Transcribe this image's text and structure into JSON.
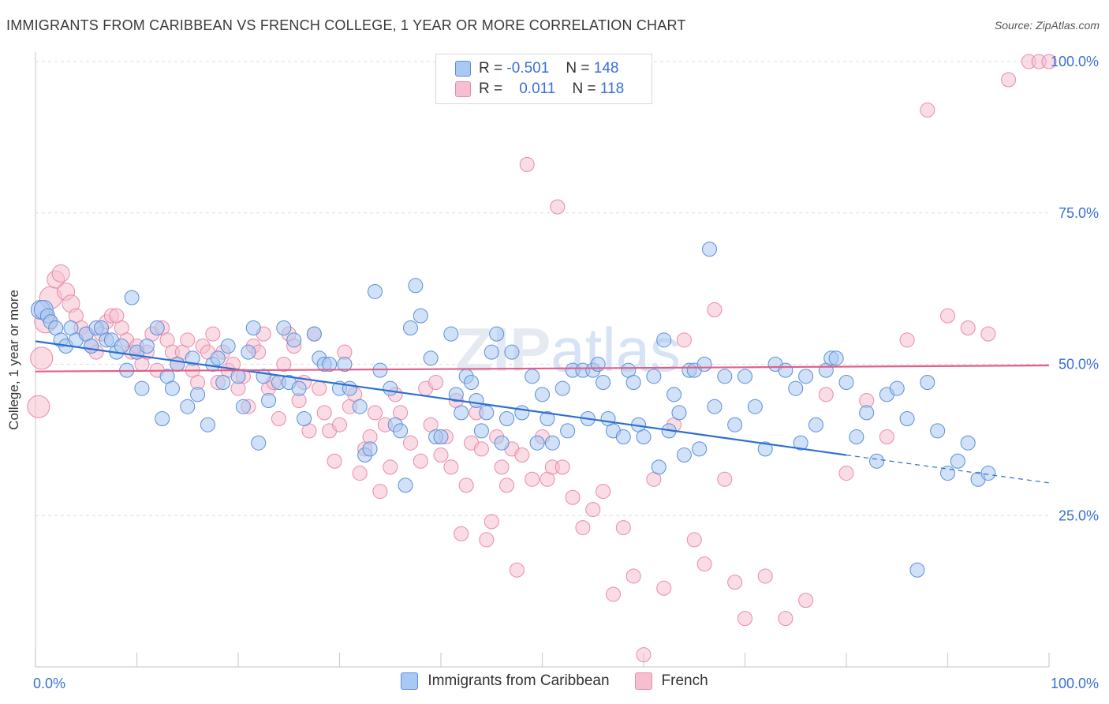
{
  "header": {
    "title": "IMMIGRANTS FROM CARIBBEAN VS FRENCH COLLEGE, 1 YEAR OR MORE CORRELATION CHART",
    "source": "Source: ZipAtlas.com"
  },
  "watermark": {
    "part1": "ZIP",
    "part2": "atlas"
  },
  "legend": {
    "rows": [
      {
        "r_label": "R =",
        "r_value": "-0.501",
        "n_label": "N =",
        "n_value": "148"
      },
      {
        "r_label": "R =",
        "r_value": "0.011",
        "n_label": "N =",
        "n_value": "118"
      }
    ]
  },
  "colors": {
    "blue_fill": "#a9c8f2",
    "blue_stroke": "#5b8fd6",
    "blue_line": "#2b6fd0",
    "pink_fill": "#f6bfd0",
    "pink_stroke": "#e98aab",
    "pink_line": "#e0608a",
    "axis_label": "#3a6fd8",
    "grid": "#dddddd"
  },
  "chart_data": {
    "type": "scatter",
    "title": "IMMIGRANTS FROM CARIBBEAN VS FRENCH COLLEGE, 1 YEAR OR MORE CORRELATION CHART",
    "xlabel": "",
    "ylabel": "College, 1 year or more",
    "xlim": [
      0,
      100
    ],
    "ylim": [
      0,
      100
    ],
    "x_tick_labels": [
      "0.0%",
      "100.0%"
    ],
    "y_ticks": [
      25,
      50,
      75,
      100
    ],
    "y_tick_labels": [
      "25.0%",
      "50.0%",
      "75.0%",
      "100.0%"
    ],
    "grid": true,
    "legend_position": "bottom",
    "series": [
      {
        "name": "Immigrants from Caribbean",
        "color": "#5b8fd6",
        "trend": {
          "x0": 0,
          "y0": 53.8,
          "x1": 80,
          "y1": 35.0,
          "dash_to_x": 100,
          "dash_to_y": 30.4
        },
        "points": [
          [
            0.5,
            59
          ],
          [
            0.8,
            59
          ],
          [
            1.2,
            58
          ],
          [
            1.5,
            57
          ],
          [
            2,
            56
          ],
          [
            2.5,
            54
          ],
          [
            3,
            53
          ],
          [
            3.5,
            56
          ],
          [
            4,
            54
          ],
          [
            5,
            55
          ],
          [
            5.5,
            53
          ],
          [
            6,
            56
          ],
          [
            6.5,
            56
          ],
          [
            7,
            54
          ],
          [
            7.5,
            54
          ],
          [
            8,
            52
          ],
          [
            8.5,
            53
          ],
          [
            9,
            49
          ],
          [
            9.5,
            61
          ],
          [
            10,
            52
          ],
          [
            10.5,
            46
          ],
          [
            11,
            53
          ],
          [
            12,
            56
          ],
          [
            12.5,
            41
          ],
          [
            13,
            48
          ],
          [
            13.5,
            46
          ],
          [
            14,
            50
          ],
          [
            15,
            43
          ],
          [
            15.5,
            51
          ],
          [
            16,
            45
          ],
          [
            17,
            40
          ],
          [
            17.5,
            50
          ],
          [
            18,
            51
          ],
          [
            18.5,
            47
          ],
          [
            19,
            53
          ],
          [
            20,
            48
          ],
          [
            20.5,
            43
          ],
          [
            21,
            52
          ],
          [
            21.5,
            56
          ],
          [
            22,
            37
          ],
          [
            22.5,
            48
          ],
          [
            23,
            44
          ],
          [
            24,
            47
          ],
          [
            24.5,
            56
          ],
          [
            25,
            47
          ],
          [
            25.5,
            54
          ],
          [
            26,
            46
          ],
          [
            26.5,
            41
          ],
          [
            27.5,
            55
          ],
          [
            28,
            51
          ],
          [
            28.5,
            50
          ],
          [
            29,
            50
          ],
          [
            30,
            46
          ],
          [
            30.5,
            50
          ],
          [
            31,
            46
          ],
          [
            32,
            43
          ],
          [
            32.5,
            35
          ],
          [
            33,
            36
          ],
          [
            33.5,
            62
          ],
          [
            34,
            49
          ],
          [
            35,
            46
          ],
          [
            35.5,
            40
          ],
          [
            36,
            39
          ],
          [
            36.5,
            30
          ],
          [
            37,
            56
          ],
          [
            37.5,
            63
          ],
          [
            38,
            58
          ],
          [
            39,
            51
          ],
          [
            39.5,
            38
          ],
          [
            40,
            38
          ],
          [
            41,
            55
          ],
          [
            41.5,
            45
          ],
          [
            42,
            42
          ],
          [
            42.5,
            48
          ],
          [
            43,
            47
          ],
          [
            43.5,
            44
          ],
          [
            44,
            39
          ],
          [
            44.5,
            42
          ],
          [
            45,
            52
          ],
          [
            45.5,
            55
          ],
          [
            46,
            37
          ],
          [
            46.5,
            41
          ],
          [
            47,
            52
          ],
          [
            48,
            42
          ],
          [
            49,
            48
          ],
          [
            49.5,
            37
          ],
          [
            50,
            45
          ],
          [
            50.5,
            41
          ],
          [
            51,
            37
          ],
          [
            52,
            46
          ],
          [
            52.5,
            39
          ],
          [
            53,
            49
          ],
          [
            54,
            49
          ],
          [
            54.5,
            41
          ],
          [
            55,
            49
          ],
          [
            55.5,
            50
          ],
          [
            56,
            47
          ],
          [
            56.5,
            41
          ],
          [
            57,
            39
          ],
          [
            58,
            38
          ],
          [
            58.5,
            49
          ],
          [
            59,
            47
          ],
          [
            59.5,
            40
          ],
          [
            60,
            38
          ],
          [
            61,
            48
          ],
          [
            61.5,
            33
          ],
          [
            62,
            54
          ],
          [
            62.5,
            39
          ],
          [
            63,
            45
          ],
          [
            63.5,
            42
          ],
          [
            64,
            35
          ],
          [
            64.5,
            49
          ],
          [
            65,
            49
          ],
          [
            65.5,
            36
          ],
          [
            66,
            50
          ],
          [
            66.5,
            69
          ],
          [
            67,
            43
          ],
          [
            68,
            48
          ],
          [
            69,
            40
          ],
          [
            70,
            48
          ],
          [
            71,
            43
          ],
          [
            72,
            36
          ],
          [
            73,
            50
          ],
          [
            74,
            49
          ],
          [
            75,
            46
          ],
          [
            75.5,
            37
          ],
          [
            76,
            48
          ],
          [
            77,
            40
          ],
          [
            78,
            49
          ],
          [
            78.5,
            51
          ],
          [
            79,
            51
          ],
          [
            80,
            47
          ],
          [
            81,
            38
          ],
          [
            82,
            42
          ],
          [
            83,
            34
          ],
          [
            84,
            45
          ],
          [
            85,
            46
          ],
          [
            86,
            41
          ],
          [
            87,
            16
          ],
          [
            88,
            47
          ],
          [
            89,
            39
          ],
          [
            90,
            32
          ],
          [
            91,
            34
          ],
          [
            92,
            37
          ],
          [
            93,
            31
          ],
          [
            94,
            32
          ]
        ]
      },
      {
        "name": "French",
        "color": "#e98aab",
        "trend": {
          "x0": 0,
          "y0": 48.8,
          "x1": 100,
          "y1": 49.8
        },
        "points": [
          [
            0.3,
            43
          ],
          [
            0.6,
            51
          ],
          [
            1,
            57
          ],
          [
            1.5,
            61
          ],
          [
            2,
            64
          ],
          [
            2.5,
            65
          ],
          [
            3,
            62
          ],
          [
            3.5,
            60
          ],
          [
            4,
            58
          ],
          [
            4.5,
            56
          ],
          [
            5,
            55
          ],
          [
            5.5,
            53
          ],
          [
            6,
            52
          ],
          [
            6.5,
            55
          ],
          [
            7,
            57
          ],
          [
            7.5,
            58
          ],
          [
            8,
            58
          ],
          [
            8.5,
            56
          ],
          [
            9,
            54
          ],
          [
            9.5,
            52
          ],
          [
            10,
            53
          ],
          [
            10.5,
            50
          ],
          [
            11,
            52
          ],
          [
            11.5,
            55
          ],
          [
            12,
            49
          ],
          [
            12.5,
            56
          ],
          [
            13,
            54
          ],
          [
            13.5,
            52
          ],
          [
            14,
            50
          ],
          [
            14.5,
            52
          ],
          [
            15,
            54
          ],
          [
            15.5,
            49
          ],
          [
            16,
            47
          ],
          [
            16.5,
            53
          ],
          [
            17,
            52
          ],
          [
            17.5,
            55
          ],
          [
            18,
            47
          ],
          [
            18.5,
            52
          ],
          [
            19,
            49
          ],
          [
            19.5,
            50
          ],
          [
            20,
            46
          ],
          [
            20.5,
            48
          ],
          [
            21,
            43
          ],
          [
            21.5,
            53
          ],
          [
            22,
            52
          ],
          [
            22.5,
            55
          ],
          [
            23,
            46
          ],
          [
            23.5,
            47
          ],
          [
            24,
            41
          ],
          [
            24.5,
            50
          ],
          [
            25,
            55
          ],
          [
            25.5,
            53
          ],
          [
            26,
            44
          ],
          [
            26.5,
            47
          ],
          [
            27,
            39
          ],
          [
            27.5,
            55
          ],
          [
            28,
            46
          ],
          [
            28.5,
            42
          ],
          [
            29,
            39
          ],
          [
            29.5,
            34
          ],
          [
            30,
            40
          ],
          [
            30.5,
            52
          ],
          [
            31,
            43
          ],
          [
            31.5,
            45
          ],
          [
            32,
            32
          ],
          [
            32.5,
            36
          ],
          [
            33,
            38
          ],
          [
            33.5,
            42
          ],
          [
            34,
            29
          ],
          [
            34.5,
            40
          ],
          [
            35,
            33
          ],
          [
            35.5,
            45
          ],
          [
            36,
            42
          ],
          [
            37,
            37
          ],
          [
            38,
            34
          ],
          [
            38.5,
            46
          ],
          [
            39,
            40
          ],
          [
            39.5,
            47
          ],
          [
            40,
            35
          ],
          [
            40.5,
            38
          ],
          [
            41,
            33
          ],
          [
            41.5,
            44
          ],
          [
            42,
            22
          ],
          [
            42.5,
            30
          ],
          [
            43,
            37
          ],
          [
            43.5,
            42
          ],
          [
            44,
            36
          ],
          [
            44.5,
            21
          ],
          [
            45,
            24
          ],
          [
            45.5,
            38
          ],
          [
            46,
            33
          ],
          [
            46.5,
            30
          ],
          [
            47,
            36
          ],
          [
            47.5,
            16
          ],
          [
            48,
            35
          ],
          [
            48.5,
            83
          ],
          [
            49,
            31
          ],
          [
            50,
            38
          ],
          [
            50.5,
            31
          ],
          [
            51,
            33
          ],
          [
            51.5,
            76
          ],
          [
            52,
            33
          ],
          [
            53,
            28
          ],
          [
            54,
            23
          ],
          [
            55,
            26
          ],
          [
            56,
            29
          ],
          [
            57,
            12
          ],
          [
            58,
            23
          ],
          [
            59,
            15
          ],
          [
            60,
            2
          ],
          [
            61,
            31
          ],
          [
            62,
            13
          ],
          [
            63,
            40
          ],
          [
            64,
            54
          ],
          [
            65,
            21
          ],
          [
            66,
            17
          ],
          [
            67,
            59
          ],
          [
            68,
            31
          ],
          [
            69,
            14
          ],
          [
            70,
            8
          ],
          [
            72,
            15
          ],
          [
            74,
            8
          ],
          [
            76,
            11
          ],
          [
            78,
            45
          ],
          [
            80,
            32
          ],
          [
            82,
            44
          ],
          [
            84,
            38
          ],
          [
            86,
            54
          ],
          [
            88,
            92
          ],
          [
            90,
            58
          ],
          [
            92,
            56
          ],
          [
            94,
            55
          ],
          [
            96,
            97
          ],
          [
            98,
            100
          ],
          [
            99,
            100
          ],
          [
            100,
            100
          ]
        ]
      }
    ]
  },
  "bottom_legend": {
    "items": [
      {
        "label": "Immigrants from Caribbean"
      },
      {
        "label": "French"
      }
    ]
  }
}
